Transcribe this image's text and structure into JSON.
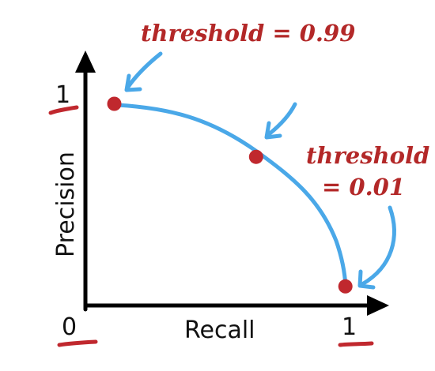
{
  "chart_data": {
    "type": "line",
    "xlabel": "Recall",
    "ylabel": "Precision",
    "xlim": [
      0,
      1
    ],
    "ylim": [
      0,
      1
    ],
    "x_ticks": [
      "0",
      "1"
    ],
    "y_ticks": [
      "1"
    ],
    "curve_points": [
      [
        0.11,
        0.95
      ],
      [
        0.65,
        0.7
      ],
      [
        0.99,
        0.09
      ]
    ],
    "annotations": [
      {
        "text": "threshold = 0.99"
      },
      {
        "lines": [
          "threshold",
          "= 0.01"
        ]
      }
    ]
  },
  "colors": {
    "axis": "#000000",
    "curve": "#4aa8e8",
    "point": "#c0282e",
    "annotation": "#b32828"
  }
}
